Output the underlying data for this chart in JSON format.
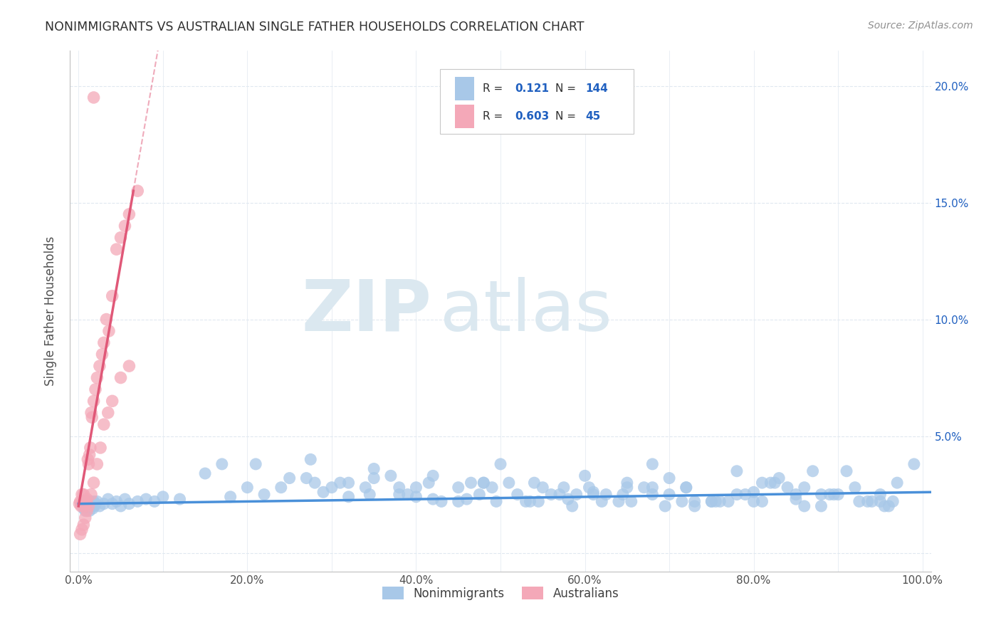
{
  "title": "NONIMMIGRANTS VS AUSTRALIAN SINGLE FATHER HOUSEHOLDS CORRELATION CHART",
  "source": "Source: ZipAtlas.com",
  "ylabel": "Single Father Households",
  "xlim": [
    -0.01,
    1.01
  ],
  "ylim": [
    -0.008,
    0.215
  ],
  "xticks": [
    0.0,
    0.1,
    0.2,
    0.3,
    0.4,
    0.5,
    0.6,
    0.7,
    0.8,
    0.9,
    1.0
  ],
  "xticklabels": [
    "0.0%",
    "",
    "20.0%",
    "",
    "40.0%",
    "",
    "60.0%",
    "",
    "80.0%",
    "",
    "100.0%"
  ],
  "yticks": [
    0.0,
    0.05,
    0.1,
    0.15,
    0.2
  ],
  "yticklabels": [
    "",
    "5.0%",
    "10.0%",
    "15.0%",
    "20.0%"
  ],
  "blue_R": 0.121,
  "blue_N": 144,
  "pink_R": 0.603,
  "pink_N": 45,
  "blue_color": "#a8c8e8",
  "pink_color": "#f4a8b8",
  "blue_line_color": "#4a90d9",
  "pink_line_color": "#e05878",
  "watermark_zip": "ZIP",
  "watermark_atlas": "atlas",
  "watermark_color": "#dbe8f0",
  "legend_R_color": "#2060c0",
  "legend_N_color": "#2060c0",
  "background_color": "#ffffff",
  "grid_color": "#e0e8f0",
  "title_color": "#303030",
  "source_color": "#909090",
  "blue_scatter_x": [
    0.005,
    0.006,
    0.007,
    0.008,
    0.009,
    0.01,
    0.011,
    0.012,
    0.013,
    0.014,
    0.015,
    0.016,
    0.017,
    0.018,
    0.019,
    0.02,
    0.022,
    0.025,
    0.03,
    0.035,
    0.04,
    0.045,
    0.05,
    0.055,
    0.06,
    0.07,
    0.08,
    0.09,
    0.1,
    0.12,
    0.15,
    0.18,
    0.2,
    0.22,
    0.25,
    0.28,
    0.3,
    0.32,
    0.35,
    0.38,
    0.4,
    0.42,
    0.45,
    0.48,
    0.5,
    0.52,
    0.55,
    0.58,
    0.6,
    0.62,
    0.65,
    0.68,
    0.7,
    0.72,
    0.75,
    0.78,
    0.8,
    0.82,
    0.85,
    0.87,
    0.9,
    0.92,
    0.95,
    0.97,
    0.99,
    0.38,
    0.46,
    0.54,
    0.61,
    0.68,
    0.76,
    0.84,
    0.91,
    0.35,
    0.43,
    0.51,
    0.59,
    0.67,
    0.75,
    0.83,
    0.29,
    0.37,
    0.45,
    0.53,
    0.61,
    0.7,
    0.78,
    0.86,
    0.94,
    0.32,
    0.4,
    0.48,
    0.57,
    0.65,
    0.73,
    0.81,
    0.89,
    0.96,
    0.34,
    0.42,
    0.49,
    0.56,
    0.64,
    0.72,
    0.8,
    0.88,
    0.955,
    0.475,
    0.545,
    0.625,
    0.695,
    0.77,
    0.85,
    0.925,
    0.585,
    0.655,
    0.73,
    0.81,
    0.88,
    0.95,
    0.17,
    0.24,
    0.31,
    0.39,
    0.465,
    0.535,
    0.605,
    0.68,
    0.755,
    0.825,
    0.895,
    0.965,
    0.27,
    0.345,
    0.415,
    0.495,
    0.575,
    0.645,
    0.715,
    0.79,
    0.86,
    0.935,
    0.21,
    0.275
  ],
  "blue_scatter_y": [
    0.021,
    0.019,
    0.02,
    0.018,
    0.022,
    0.02,
    0.019,
    0.021,
    0.018,
    0.022,
    0.02,
    0.021,
    0.019,
    0.022,
    0.02,
    0.021,
    0.022,
    0.02,
    0.021,
    0.023,
    0.021,
    0.022,
    0.02,
    0.023,
    0.021,
    0.022,
    0.023,
    0.022,
    0.024,
    0.023,
    0.034,
    0.024,
    0.028,
    0.025,
    0.032,
    0.03,
    0.028,
    0.024,
    0.036,
    0.025,
    0.028,
    0.033,
    0.022,
    0.03,
    0.038,
    0.025,
    0.028,
    0.023,
    0.033,
    0.022,
    0.03,
    0.038,
    0.025,
    0.028,
    0.022,
    0.035,
    0.026,
    0.03,
    0.023,
    0.035,
    0.025,
    0.028,
    0.022,
    0.03,
    0.038,
    0.028,
    0.023,
    0.03,
    0.025,
    0.028,
    0.022,
    0.028,
    0.035,
    0.032,
    0.022,
    0.03,
    0.025,
    0.028,
    0.022,
    0.032,
    0.026,
    0.033,
    0.028,
    0.022,
    0.026,
    0.032,
    0.025,
    0.028,
    0.022,
    0.03,
    0.024,
    0.03,
    0.025,
    0.028,
    0.022,
    0.03,
    0.025,
    0.02,
    0.028,
    0.023,
    0.028,
    0.025,
    0.022,
    0.028,
    0.022,
    0.025,
    0.02,
    0.025,
    0.022,
    0.025,
    0.02,
    0.022,
    0.025,
    0.022,
    0.02,
    0.022,
    0.02,
    0.022,
    0.02,
    0.025,
    0.038,
    0.028,
    0.03,
    0.025,
    0.03,
    0.022,
    0.028,
    0.025,
    0.022,
    0.03,
    0.025,
    0.022,
    0.032,
    0.025,
    0.03,
    0.022,
    0.028,
    0.025,
    0.022,
    0.025,
    0.02,
    0.022,
    0.038,
    0.04
  ],
  "pink_scatter_x": [
    0.001,
    0.002,
    0.003,
    0.004,
    0.005,
    0.006,
    0.007,
    0.008,
    0.009,
    0.01,
    0.011,
    0.012,
    0.013,
    0.014,
    0.015,
    0.016,
    0.018,
    0.02,
    0.022,
    0.025,
    0.028,
    0.03,
    0.033,
    0.036,
    0.04,
    0.045,
    0.05,
    0.055,
    0.06,
    0.07,
    0.002,
    0.004,
    0.006,
    0.008,
    0.01,
    0.012,
    0.015,
    0.018,
    0.022,
    0.026,
    0.03,
    0.035,
    0.04,
    0.05,
    0.06
  ],
  "pink_scatter_y": [
    0.021,
    0.022,
    0.02,
    0.025,
    0.022,
    0.025,
    0.02,
    0.022,
    0.021,
    0.023,
    0.04,
    0.038,
    0.042,
    0.045,
    0.06,
    0.058,
    0.065,
    0.07,
    0.075,
    0.08,
    0.085,
    0.09,
    0.1,
    0.095,
    0.11,
    0.13,
    0.135,
    0.14,
    0.145,
    0.155,
    0.008,
    0.01,
    0.012,
    0.015,
    0.018,
    0.02,
    0.025,
    0.03,
    0.038,
    0.045,
    0.055,
    0.06,
    0.065,
    0.075,
    0.08
  ],
  "pink_outlier_x": [
    0.018
  ],
  "pink_outlier_y": [
    0.195
  ]
}
